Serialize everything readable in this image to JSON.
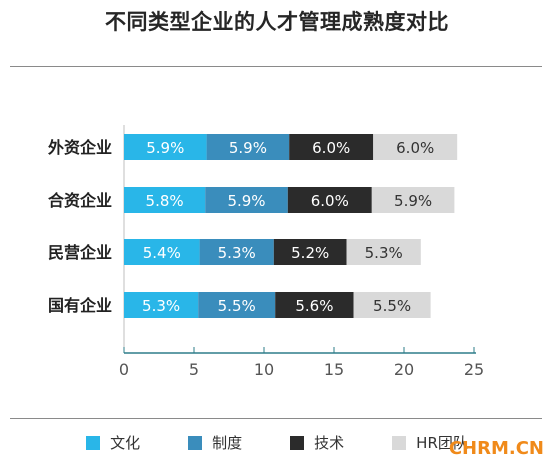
{
  "title": "不同类型企业的人才管理成熟度对比",
  "watermark": "CHRM.CN",
  "chart_data": {
    "type": "bar",
    "orientation": "horizontal",
    "stacked": true,
    "categories": [
      "外资企业",
      "合资企业",
      "民营企业",
      "国有企业"
    ],
    "series": [
      {
        "name": "文化",
        "color": "#29b6e8",
        "values": [
          5.9,
          5.8,
          5.4,
          5.3
        ],
        "labels": [
          "5.9%",
          "5.8%",
          "5.4%",
          "5.3%"
        ]
      },
      {
        "name": "制度",
        "color": "#3a8dbc",
        "values": [
          5.9,
          5.9,
          5.3,
          5.5
        ],
        "labels": [
          "5.9%",
          "5.9%",
          "5.3%",
          "5.5%"
        ]
      },
      {
        "name": "技术",
        "color": "#2b2b2b",
        "values": [
          6.0,
          6.0,
          5.2,
          5.6
        ],
        "labels": [
          "6.0%",
          "6.0%",
          "5.2%",
          "5.6%"
        ]
      },
      {
        "name": "HR团队",
        "color": "#d9d9d9",
        "values": [
          6.0,
          5.9,
          5.3,
          5.5
        ],
        "labels": [
          "6.0%",
          "5.9%",
          "5.3%",
          "5.5%"
        ]
      }
    ],
    "xlim": [
      0,
      25
    ],
    "xticks": [
      0,
      5,
      10,
      15,
      20,
      25
    ],
    "legend_position": "bottom",
    "grid": false
  }
}
